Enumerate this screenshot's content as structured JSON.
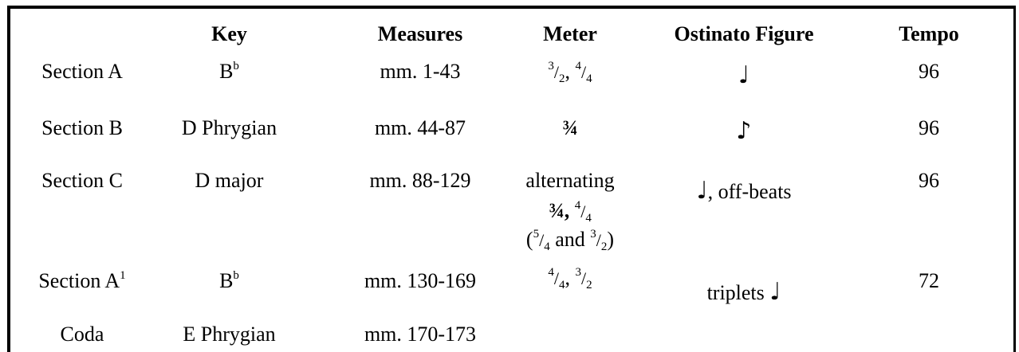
{
  "headers": {
    "key": "Key",
    "measures": "Measures",
    "meter": "Meter",
    "ostinato": "Ostinato Figure",
    "tempo": "Tempo"
  },
  "rows": [
    {
      "label": "Section A",
      "key": "B",
      "key_sup": "b",
      "measures": "mm. 1-43",
      "meter": {
        "n1": "3",
        "d1": "2",
        "sep": ", ",
        "n2": "4",
        "d2": "4"
      },
      "ostinato": {
        "note": "♩"
      },
      "tempo": "96"
    },
    {
      "label": "Section B",
      "key": "D Phrygian",
      "measures": "mm. 44-87",
      "meter": {
        "frac": "¾"
      },
      "ostinato": {
        "note": "♪"
      },
      "tempo": "96"
    },
    {
      "label": "Section C",
      "key": "D major",
      "measures": "mm. 88-129",
      "meter": {
        "line1": "alternating",
        "frac": "¾,",
        "n2": "4",
        "d2": "4",
        "open": "(",
        "n3": "5",
        "d3": "4",
        "and": " and ",
        "n4": "3",
        "d4": "2",
        "close": ")"
      },
      "ostinato": {
        "note": "♩",
        "text": ", off-beats"
      },
      "tempo": "96"
    },
    {
      "label": "Section A",
      "label_sup": "1",
      "key": "B",
      "key_sup": "b",
      "measures": "mm. 130-169",
      "meter": {
        "n1": "4",
        "d1": "4",
        "sep": ", ",
        "n2": "3",
        "d2": "2"
      },
      "ostinato": {
        "text": "triplets ",
        "note": "♩"
      },
      "tempo": "72"
    },
    {
      "label": "Coda",
      "key": "E Phrygian",
      "measures": "mm. 170-173"
    }
  ],
  "slash": "/",
  "colors": {
    "border": "#000000",
    "text": "#000000",
    "background": "#ffffff"
  }
}
